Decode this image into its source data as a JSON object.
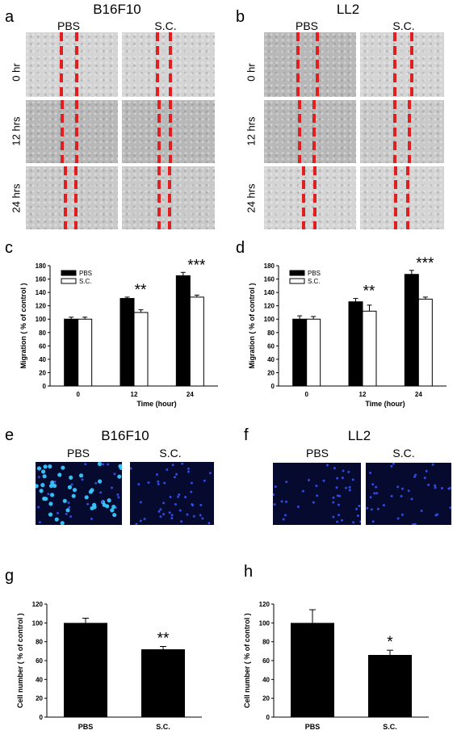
{
  "panels": {
    "a": "a",
    "b": "b",
    "c": "c",
    "d": "d",
    "e": "e",
    "f": "f",
    "g": "g",
    "h": "h"
  },
  "wound": {
    "left_title": "B16F10",
    "right_title": "LL2",
    "col_pbs": "PBS",
    "col_sc": "S.C.",
    "rows": [
      "0 hr",
      "12 hrs",
      "24 hrs"
    ]
  },
  "fluor": {
    "left_title": "B16F10",
    "right_title": "LL2",
    "col_pbs": "PBS",
    "col_sc": "S.C."
  },
  "chart_data": [
    {
      "id": "c",
      "type": "bar",
      "categories": [
        "0",
        "12",
        "24"
      ],
      "series": [
        {
          "name": "PBS",
          "values": [
            100,
            131,
            165
          ],
          "errors": [
            3,
            2,
            5
          ],
          "color": "#000000"
        },
        {
          "name": "S.C.",
          "values": [
            100,
            110,
            133
          ],
          "errors": [
            3,
            4,
            3
          ],
          "color": "#ffffff"
        }
      ],
      "annotations": [
        "",
        "**",
        "***"
      ],
      "xlabel": "Time (hour)",
      "ylabel": "Migration ( % of control )",
      "ylim": [
        0,
        180
      ],
      "yticks": [
        0,
        20,
        40,
        60,
        80,
        100,
        120,
        140,
        160,
        180
      ],
      "legend": "top-left"
    },
    {
      "id": "d",
      "type": "bar",
      "categories": [
        "0",
        "12",
        "24"
      ],
      "series": [
        {
          "name": "PBS",
          "values": [
            100,
            126,
            167
          ],
          "errors": [
            5,
            5,
            6
          ],
          "color": "#000000"
        },
        {
          "name": "S.C.",
          "values": [
            100,
            112,
            130
          ],
          "errors": [
            4,
            9,
            3
          ],
          "color": "#ffffff"
        }
      ],
      "annotations": [
        "",
        "**",
        "***"
      ],
      "xlabel": "Time (hour)",
      "ylabel": "Migration ( % of control )",
      "ylim": [
        0,
        180
      ],
      "yticks": [
        0,
        20,
        40,
        60,
        80,
        100,
        120,
        140,
        160,
        180
      ],
      "legend": "top-left"
    },
    {
      "id": "g",
      "type": "bar",
      "categories": [
        "PBS",
        "S.C."
      ],
      "values": [
        100,
        72
      ],
      "errors": [
        5,
        3
      ],
      "annotations": [
        "",
        "**"
      ],
      "xlabel": "",
      "ylabel": "Cell number ( % of control )",
      "ylim": [
        0,
        120
      ],
      "yticks": [
        0,
        20,
        40,
        60,
        80,
        100,
        120
      ]
    },
    {
      "id": "h",
      "type": "bar",
      "categories": [
        "PBS",
        "S.C."
      ],
      "values": [
        100,
        66
      ],
      "errors": [
        14,
        5
      ],
      "annotations": [
        "",
        "*"
      ],
      "xlabel": "",
      "ylabel": "Cell number ( % of control )",
      "ylim": [
        0,
        120
      ],
      "yticks": [
        0,
        20,
        40,
        60,
        80,
        100,
        120
      ]
    }
  ]
}
